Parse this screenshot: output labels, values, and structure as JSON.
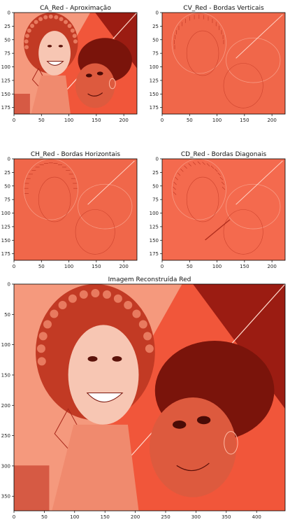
{
  "chart_data": [
    {
      "type": "heatmap",
      "title": "CA_Red - Aproximação",
      "xlim": [
        0,
        224
      ],
      "ylim": [
        187,
        0
      ],
      "xticks": [
        0,
        50,
        100,
        150,
        200
      ],
      "yticks": [
        0,
        25,
        50,
        75,
        100,
        125,
        150,
        175
      ],
      "colormap": "Reds",
      "content": "approximation"
    },
    {
      "type": "heatmap",
      "title": "CV_Red - Bordas Verticais",
      "xlim": [
        0,
        224
      ],
      "ylim": [
        187,
        0
      ],
      "xticks": [
        0,
        50,
        100,
        150,
        200
      ],
      "yticks": [
        0,
        25,
        50,
        75,
        100,
        125,
        150,
        175
      ],
      "colormap": "Reds",
      "content": "vertical-edges"
    },
    {
      "type": "heatmap",
      "title": "CH_Red - Bordas Horizontais",
      "xlim": [
        0,
        224
      ],
      "ylim": [
        187,
        0
      ],
      "xticks": [
        0,
        50,
        100,
        150,
        200
      ],
      "yticks": [
        0,
        25,
        50,
        75,
        100,
        125,
        150,
        175
      ],
      "colormap": "Reds",
      "content": "horizontal-edges"
    },
    {
      "type": "heatmap",
      "title": "CD_Red - Bordas Diagonais",
      "xlim": [
        0,
        224
      ],
      "ylim": [
        187,
        0
      ],
      "xticks": [
        0,
        50,
        100,
        150,
        200
      ],
      "yticks": [
        0,
        25,
        50,
        75,
        100,
        125,
        150,
        175
      ],
      "colormap": "Reds",
      "content": "diagonal-edges"
    },
    {
      "type": "heatmap",
      "title": "Imagem Reconstruída Red",
      "xlim": [
        0,
        447
      ],
      "ylim": [
        374,
        0
      ],
      "xticks": [
        0,
        50,
        100,
        150,
        200,
        250,
        300,
        350,
        400
      ],
      "yticks": [
        0,
        50,
        100,
        150,
        200,
        250,
        300,
        350
      ],
      "colormap": "Reds",
      "content": "reconstruction"
    }
  ],
  "colors": {
    "base": "#f1563a",
    "light": "#fcd8c8",
    "dark": "#9b1c12",
    "edge": "#f0674a"
  }
}
